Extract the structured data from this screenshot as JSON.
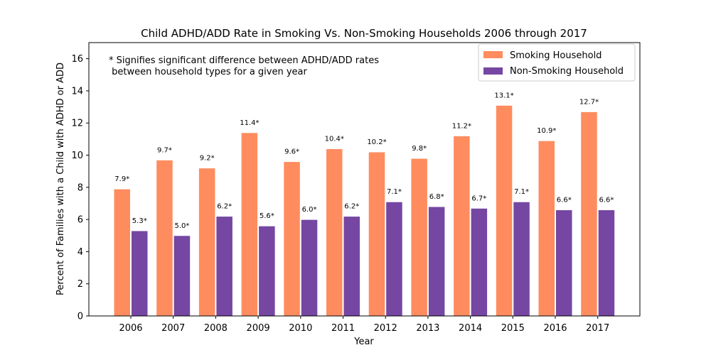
{
  "chart_data": {
    "type": "bar",
    "title": "Child ADHD/ADD Rate in Smoking Vs. Non-Smoking Households 2006 through 2017",
    "xlabel": "Year",
    "ylabel": "Percent of Families with a Child with ADHD or ADD",
    "ylim": [
      0,
      17
    ],
    "yticks": [
      0,
      2,
      4,
      6,
      8,
      10,
      12,
      14,
      16
    ],
    "grid": false,
    "legend_position": "top-right",
    "categories": [
      "2006",
      "2007",
      "2008",
      "2009",
      "2010",
      "2011",
      "2012",
      "2013",
      "2014",
      "2015",
      "2016",
      "2017"
    ],
    "series": [
      {
        "name": "Smoking Household",
        "color": "#ff8c5f",
        "values": [
          7.9,
          9.7,
          9.2,
          11.4,
          9.6,
          10.4,
          10.2,
          9.8,
          11.2,
          13.1,
          10.9,
          12.7
        ],
        "labels": [
          "7.9*",
          "9.7*",
          "9.2*",
          "11.4*",
          "9.6*",
          "10.4*",
          "10.2*",
          "9.8*",
          "11.2*",
          "13.1*",
          "10.9*",
          "12.7*"
        ]
      },
      {
        "name": "Non-Smoking Household",
        "color": "#7546a2",
        "values": [
          5.3,
          5.0,
          6.2,
          5.6,
          6.0,
          6.2,
          7.1,
          6.8,
          6.7,
          7.1,
          6.6,
          6.6
        ],
        "labels": [
          "5.3*",
          "5.0*",
          "6.2*",
          "5.6*",
          "6.0*",
          "6.2*",
          "7.1*",
          "6.8*",
          "6.7*",
          "7.1*",
          "6.6*",
          "6.6*"
        ]
      }
    ],
    "annotation": {
      "line1": "* Signifies significant difference between ADHD/ADD rates",
      "line2": " between household types for a given year"
    }
  }
}
